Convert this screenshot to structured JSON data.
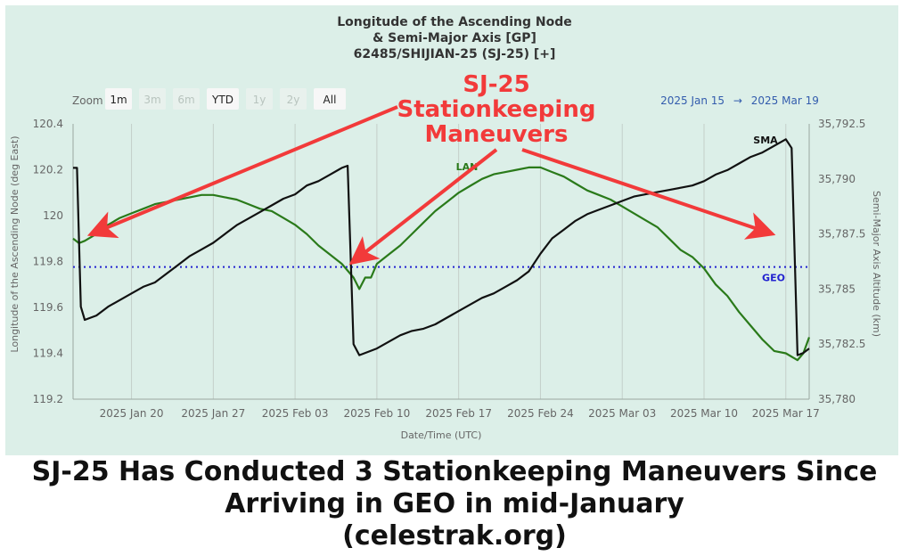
{
  "chart_data": {
    "type": "line",
    "title": "Longitude of the Ascending Node",
    "subtitle_line2": "& Semi-Major Axis [GP]",
    "subtitle_line3": "62485/SHIJIAN-25 (SJ-25) [+]",
    "xlabel": "Date/Time (UTC)",
    "ylabel_left": "Longitude of the Ascending Node (deg East)",
    "ylabel_right": "Semi-Major Axis Altitude (km)",
    "x_range": [
      "2025-01-15",
      "2025-03-19"
    ],
    "x_ticks": [
      "2025 Jan 20",
      "2025 Jan 27",
      "2025 Feb 03",
      "2025 Feb 10",
      "2025 Feb 17",
      "2025 Feb 24",
      "2025 Mar 03",
      "2025 Mar 10",
      "2025 Mar 17"
    ],
    "y_left": {
      "min": 119.2,
      "max": 120.4,
      "ticks": [
        "120.4",
        "120.2",
        "120",
        "119.8",
        "119.6",
        "119.4",
        "119.2"
      ]
    },
    "y_right": {
      "min": 35780,
      "max": 35792.5,
      "ticks": [
        "35,792.5",
        "35,790",
        "35,787.5",
        "35,785",
        "35,782.5",
        "35,780"
      ]
    },
    "geo_line": {
      "label": "GEO",
      "altitude_km": 35786,
      "color": "#2323d0"
    },
    "grid": "vertical",
    "series": [
      {
        "name": "LAN",
        "axis": "left",
        "color": "#2a7a1a",
        "points": [
          [
            "2025-01-15T00:00",
            119.9
          ],
          [
            "2025-01-15T12:00",
            119.88
          ],
          [
            "2025-01-16T00:00",
            119.89
          ],
          [
            "2025-01-17T00:00",
            119.92
          ],
          [
            "2025-01-18T00:00",
            119.96
          ],
          [
            "2025-01-19T00:00",
            119.99
          ],
          [
            "2025-01-20T00:00",
            120.01
          ],
          [
            "2025-01-21T00:00",
            120.03
          ],
          [
            "2025-01-22T00:00",
            120.05
          ],
          [
            "2025-01-23T00:00",
            120.06
          ],
          [
            "2025-01-24T00:00",
            120.07
          ],
          [
            "2025-01-25T00:00",
            120.08
          ],
          [
            "2025-01-26T00:00",
            120.09
          ],
          [
            "2025-01-27T00:00",
            120.09
          ],
          [
            "2025-01-28T00:00",
            120.08
          ],
          [
            "2025-01-29T00:00",
            120.07
          ],
          [
            "2025-01-30T00:00",
            120.05
          ],
          [
            "2025-01-31T00:00",
            120.03
          ],
          [
            "2025-02-01T00:00",
            120.02
          ],
          [
            "2025-02-02T00:00",
            119.99
          ],
          [
            "2025-02-03T00:00",
            119.96
          ],
          [
            "2025-02-04T00:00",
            119.92
          ],
          [
            "2025-02-05T00:00",
            119.87
          ],
          [
            "2025-02-06T00:00",
            119.83
          ],
          [
            "2025-02-07T00:00",
            119.79
          ],
          [
            "2025-02-08T00:00",
            119.73
          ],
          [
            "2025-02-08T12:00",
            119.68
          ],
          [
            "2025-02-09T00:00",
            119.73
          ],
          [
            "2025-02-09T12:00",
            119.73
          ],
          [
            "2025-02-10T00:00",
            119.79
          ],
          [
            "2025-02-11T00:00",
            119.83
          ],
          [
            "2025-02-12T00:00",
            119.87
          ],
          [
            "2025-02-13T00:00",
            119.92
          ],
          [
            "2025-02-14T00:00",
            119.97
          ],
          [
            "2025-02-15T00:00",
            120.02
          ],
          [
            "2025-02-16T00:00",
            120.06
          ],
          [
            "2025-02-17T00:00",
            120.1
          ],
          [
            "2025-02-18T00:00",
            120.13
          ],
          [
            "2025-02-19T00:00",
            120.16
          ],
          [
            "2025-02-20T00:00",
            120.18
          ],
          [
            "2025-02-21T00:00",
            120.19
          ],
          [
            "2025-02-22T00:00",
            120.2
          ],
          [
            "2025-02-23T00:00",
            120.21
          ],
          [
            "2025-02-24T00:00",
            120.21
          ],
          [
            "2025-02-25T00:00",
            120.19
          ],
          [
            "2025-02-26T00:00",
            120.17
          ],
          [
            "2025-02-27T00:00",
            120.14
          ],
          [
            "2025-02-28T00:00",
            120.11
          ],
          [
            "2025-03-01T00:00",
            120.09
          ],
          [
            "2025-03-02T00:00",
            120.07
          ],
          [
            "2025-03-03T00:00",
            120.04
          ],
          [
            "2025-03-04T00:00",
            120.01
          ],
          [
            "2025-03-05T00:00",
            119.98
          ],
          [
            "2025-03-06T00:00",
            119.95
          ],
          [
            "2025-03-07T00:00",
            119.9
          ],
          [
            "2025-03-08T00:00",
            119.85
          ],
          [
            "2025-03-09T00:00",
            119.82
          ],
          [
            "2025-03-10T00:00",
            119.77
          ],
          [
            "2025-03-11T00:00",
            119.7
          ],
          [
            "2025-03-12T00:00",
            119.65
          ],
          [
            "2025-03-13T00:00",
            119.58
          ],
          [
            "2025-03-14T00:00",
            119.52
          ],
          [
            "2025-03-15T00:00",
            119.46
          ],
          [
            "2025-03-16T00:00",
            119.41
          ],
          [
            "2025-03-17T00:00",
            119.4
          ],
          [
            "2025-03-18T00:00",
            119.37
          ],
          [
            "2025-03-18T12:00",
            119.4
          ],
          [
            "2025-03-19T00:00",
            119.47
          ]
        ]
      },
      {
        "name": "SMA",
        "axis": "right",
        "color": "#111111",
        "points": [
          [
            "2025-01-15T00:00",
            35790.5
          ],
          [
            "2025-01-15T08:00",
            35790.5
          ],
          [
            "2025-01-15T16:00",
            35784.2
          ],
          [
            "2025-01-16T00:00",
            35783.6
          ],
          [
            "2025-01-17T00:00",
            35783.8
          ],
          [
            "2025-01-18T00:00",
            35784.2
          ],
          [
            "2025-01-19T00:00",
            35784.5
          ],
          [
            "2025-01-20T00:00",
            35784.8
          ],
          [
            "2025-01-21T00:00",
            35785.1
          ],
          [
            "2025-01-22T00:00",
            35785.3
          ],
          [
            "2025-01-23T00:00",
            35785.7
          ],
          [
            "2025-01-24T00:00",
            35786.1
          ],
          [
            "2025-01-25T00:00",
            35786.5
          ],
          [
            "2025-01-26T00:00",
            35786.8
          ],
          [
            "2025-01-27T00:00",
            35787.1
          ],
          [
            "2025-01-28T00:00",
            35787.5
          ],
          [
            "2025-01-29T00:00",
            35787.9
          ],
          [
            "2025-01-30T00:00",
            35788.2
          ],
          [
            "2025-01-31T00:00",
            35788.5
          ],
          [
            "2025-02-01T00:00",
            35788.8
          ],
          [
            "2025-02-02T00:00",
            35789.1
          ],
          [
            "2025-02-03T00:00",
            35789.3
          ],
          [
            "2025-02-04T00:00",
            35789.7
          ],
          [
            "2025-02-05T00:00",
            35789.9
          ],
          [
            "2025-02-06T00:00",
            35790.2
          ],
          [
            "2025-02-07T00:00",
            35790.5
          ],
          [
            "2025-02-07T12:00",
            35790.6
          ],
          [
            "2025-02-08T00:00",
            35782.5
          ],
          [
            "2025-02-08T12:00",
            35782.0
          ],
          [
            "2025-02-09T00:00",
            35782.1
          ],
          [
            "2025-02-10T00:00",
            35782.3
          ],
          [
            "2025-02-11T00:00",
            35782.6
          ],
          [
            "2025-02-12T00:00",
            35782.9
          ],
          [
            "2025-02-13T00:00",
            35783.1
          ],
          [
            "2025-02-14T00:00",
            35783.2
          ],
          [
            "2025-02-15T00:00",
            35783.4
          ],
          [
            "2025-02-16T00:00",
            35783.7
          ],
          [
            "2025-02-17T00:00",
            35784.0
          ],
          [
            "2025-02-18T00:00",
            35784.3
          ],
          [
            "2025-02-19T00:00",
            35784.6
          ],
          [
            "2025-02-20T00:00",
            35784.8
          ],
          [
            "2025-02-21T00:00",
            35785.1
          ],
          [
            "2025-02-22T00:00",
            35785.4
          ],
          [
            "2025-02-23T00:00",
            35785.8
          ],
          [
            "2025-02-24T00:00",
            35786.6
          ],
          [
            "2025-02-25T00:00",
            35787.3
          ],
          [
            "2025-02-26T00:00",
            35787.7
          ],
          [
            "2025-02-27T00:00",
            35788.1
          ],
          [
            "2025-02-28T00:00",
            35788.4
          ],
          [
            "2025-03-01T00:00",
            35788.6
          ],
          [
            "2025-03-02T00:00",
            35788.8
          ],
          [
            "2025-03-03T00:00",
            35789.0
          ],
          [
            "2025-03-04T00:00",
            35789.2
          ],
          [
            "2025-03-05T00:00",
            35789.3
          ],
          [
            "2025-03-06T00:00",
            35789.4
          ],
          [
            "2025-03-07T00:00",
            35789.5
          ],
          [
            "2025-03-08T00:00",
            35789.6
          ],
          [
            "2025-03-09T00:00",
            35789.7
          ],
          [
            "2025-03-10T00:00",
            35789.9
          ],
          [
            "2025-03-11T00:00",
            35790.2
          ],
          [
            "2025-03-12T00:00",
            35790.4
          ],
          [
            "2025-03-13T00:00",
            35790.7
          ],
          [
            "2025-03-14T00:00",
            35791.0
          ],
          [
            "2025-03-15T00:00",
            35791.2
          ],
          [
            "2025-03-16T00:00",
            35791.5
          ],
          [
            "2025-03-17T00:00",
            35791.8
          ],
          [
            "2025-03-17T12:00",
            35791.4
          ],
          [
            "2025-03-18T00:00",
            35782.0
          ],
          [
            "2025-03-18T12:00",
            35782.1
          ],
          [
            "2025-03-19T00:00",
            35782.3
          ]
        ]
      }
    ]
  },
  "zoom": {
    "label": "Zoom",
    "buttons": [
      {
        "label": "1m",
        "state": "active"
      },
      {
        "label": "3m",
        "state": "disabled"
      },
      {
        "label": "6m",
        "state": "disabled"
      },
      {
        "label": "YTD",
        "state": "active"
      },
      {
        "label": "1y",
        "state": "disabled"
      },
      {
        "label": "2y",
        "state": "disabled"
      },
      {
        "label": "All",
        "state": "active"
      }
    ]
  },
  "date_range": {
    "from": "2025 Jan 15",
    "arrow": "→",
    "to": "2025 Mar 19"
  },
  "annotation": {
    "lines": [
      "SJ-25",
      "Stationkeeping",
      "Maneuvers"
    ],
    "color": "#f23a3a"
  },
  "caption": {
    "lines": [
      "SJ-25 Has Conducted 3 Stationkeeping Maneuvers Since",
      "Arriving in GEO in mid-January",
      "(celestrak.org)"
    ]
  },
  "colors": {
    "panel_bg": "#dcefe8",
    "grid": "#c4cfc9"
  }
}
